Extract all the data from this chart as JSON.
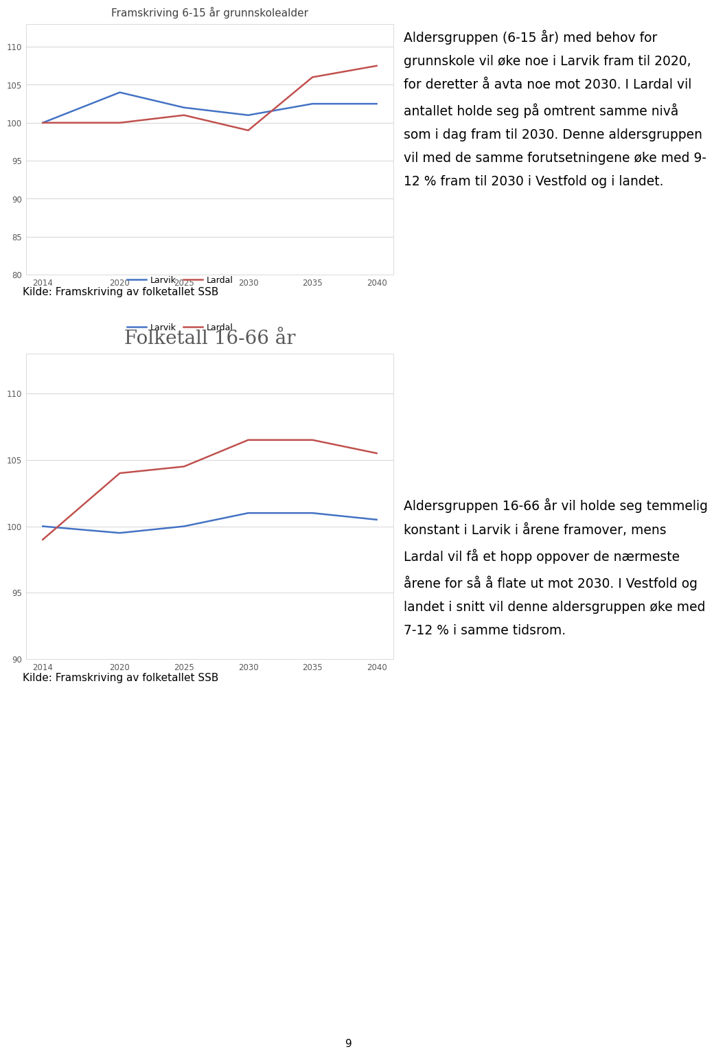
{
  "chart1": {
    "title": "Framskriving 6-15 år grunnskolealder",
    "x": [
      2014,
      2020,
      2025,
      2030,
      2035,
      2040
    ],
    "larvik": [
      100,
      104,
      102,
      101,
      102.5,
      102.5
    ],
    "lardal": [
      100,
      100,
      101,
      99,
      106,
      107.5
    ],
    "ylim": [
      80,
      113
    ],
    "yticks": [
      80,
      85,
      90,
      95,
      100,
      105,
      110
    ],
    "larvik_color": "#4472C4",
    "lardal_color": "#C0504D",
    "title_fontsize": 11,
    "title_color": "#404040",
    "tick_fontsize": 8.5
  },
  "chart2": {
    "title": "Folketall 16-66 år",
    "x": [
      2014,
      2020,
      2025,
      2030,
      2035,
      2040
    ],
    "larvik": [
      100,
      99.5,
      100,
      101,
      101,
      100.5
    ],
    "lardal": [
      99,
      104,
      104.5,
      106.5,
      106.5,
      105.5
    ],
    "ylim": [
      90,
      113
    ],
    "yticks": [
      90,
      95,
      100,
      105,
      110
    ],
    "larvik_color": "#4472C4",
    "lardal_color": "#C0504D",
    "title_fontsize": 20,
    "title_color": "#595959",
    "tick_fontsize": 8.5
  },
  "text1": "Aldersgruppen (6-15 år) med behov for\ngrunnskole vil øke noe i Larvik fram til 2020,\nfor deretter å avta noe mot 2030. I Lardal vil\nantallet holde seg på omtrent samme nivå\nsom i dag fram til 2030. Denne aldersgruppen\nvil med de samme forutsetningene øke med 9-\n12 % fram til 2030 i Vestfold og i landet.",
  "text2": "Aldersgruppen 16-66 år vil holde seg temmelig\nkonstant i Larvik i årene framover, mens\nLardal vil få et hopp oppover de nærmeste\nårene for så å flate ut mot 2030. I Vestfold og\nlandet i snitt vil denne aldersgruppen øke med\n7-12 % i samme tidsrom.",
  "source_text": "Kilde: Framskriving av folketallet SSB",
  "page_number": "9",
  "legend_larvik": "Larvik",
  "legend_lardal": "Lardal",
  "background_color": "#FFFFFF",
  "text1_fontsize": 13.5,
  "text2_fontsize": 13.5,
  "source_fontsize": 11,
  "page_fontsize": 11
}
